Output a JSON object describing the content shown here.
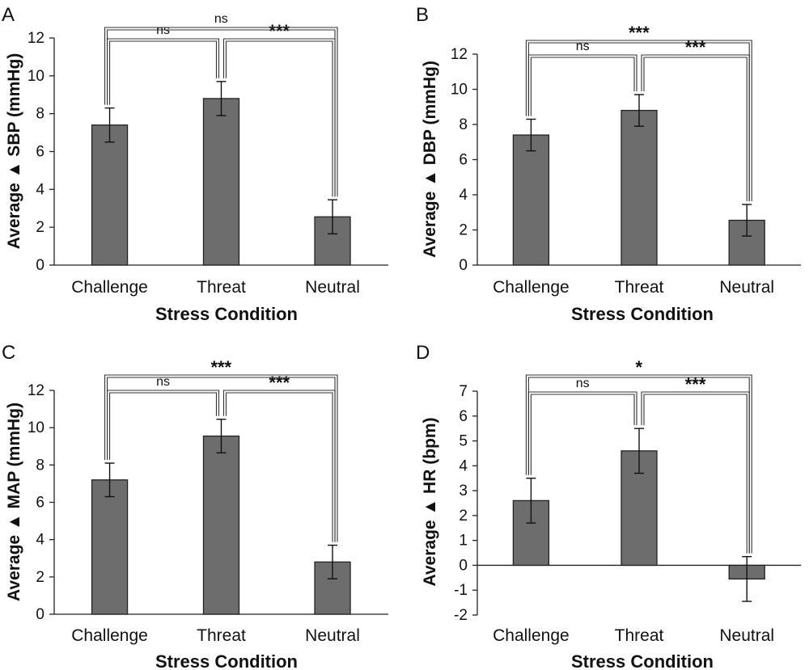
{
  "figure": {
    "panels": [
      {
        "letter": "A",
        "chart_data": {
          "type": "bar",
          "categories": [
            "Challenge",
            "Threat",
            "Neutral"
          ],
          "values": [
            7.4,
            8.8,
            2.55
          ],
          "errors": [
            0.9,
            0.9,
            0.9
          ],
          "ylim": [
            0,
            12
          ],
          "yticks": [
            "0",
            "2",
            "4",
            "6",
            "8",
            "10",
            "12"
          ],
          "ytick_values": [
            0,
            2,
            4,
            6,
            8,
            10,
            12
          ],
          "xlabel": "Stress Condition",
          "ylabel": "Average ▲ SBP (mmHg)",
          "color": "#6d6d6d",
          "significance": [
            {
              "from": 0,
              "to": 1,
              "label": "ns",
              "level": "inner"
            },
            {
              "from": 1,
              "to": 2,
              "label": "***",
              "level": "inner"
            },
            {
              "from": 0,
              "to": 2,
              "label": "ns",
              "level": "outer"
            }
          ]
        }
      },
      {
        "letter": "B",
        "chart_data": {
          "type": "bar",
          "categories": [
            "Challenge",
            "Threat",
            "Neutral"
          ],
          "values": [
            7.4,
            8.8,
            2.55
          ],
          "errors": [
            0.9,
            0.9,
            0.9
          ],
          "ylim": [
            0,
            12
          ],
          "yticks": [
            "0",
            "2",
            "4",
            "6",
            "8",
            "10",
            "12"
          ],
          "ytick_values": [
            0,
            2,
            4,
            6,
            8,
            10,
            12
          ],
          "xlabel": "Stress Condition",
          "ylabel": "Average ▲ DBP (mmHg)",
          "color": "#6d6d6d",
          "significance": [
            {
              "from": 0,
              "to": 1,
              "label": "ns",
              "level": "inner"
            },
            {
              "from": 1,
              "to": 2,
              "label": "***",
              "level": "inner"
            },
            {
              "from": 0,
              "to": 2,
              "label": "***",
              "level": "outer"
            }
          ]
        }
      },
      {
        "letter": "C",
        "chart_data": {
          "type": "bar",
          "categories": [
            "Challenge",
            "Threat",
            "Neutral"
          ],
          "values": [
            7.2,
            9.55,
            2.8
          ],
          "errors": [
            0.9,
            0.9,
            0.9
          ],
          "ylim": [
            0,
            12
          ],
          "yticks": [
            "0",
            "2",
            "4",
            "6",
            "8",
            "10",
            "12"
          ],
          "ytick_values": [
            0,
            2,
            4,
            6,
            8,
            10,
            12
          ],
          "xlabel": "Stress Condition",
          "ylabel": "Average ▲ MAP (mmHg)",
          "color": "#6d6d6d",
          "significance": [
            {
              "from": 0,
              "to": 1,
              "label": "ns",
              "level": "inner"
            },
            {
              "from": 1,
              "to": 2,
              "label": "***",
              "level": "inner"
            },
            {
              "from": 0,
              "to": 2,
              "label": "***",
              "level": "outer"
            }
          ]
        }
      },
      {
        "letter": "D",
        "chart_data": {
          "type": "bar",
          "categories": [
            "Challenge",
            "Threat",
            "Neutral"
          ],
          "values": [
            2.6,
            4.6,
            -0.55
          ],
          "errors": [
            0.9,
            0.9,
            0.9
          ],
          "ylim": [
            -2,
            7
          ],
          "yticks": [
            "-2",
            "-1",
            "0",
            "1",
            "2",
            "3",
            "4",
            "5",
            "6",
            "7"
          ],
          "ytick_values": [
            -2,
            -1,
            0,
            1,
            2,
            3,
            4,
            5,
            6,
            7
          ],
          "xlabel": "Stress Condition",
          "ylabel": "Average ▲ HR (bpm)",
          "color": "#6d6d6d",
          "significance": [
            {
              "from": 0,
              "to": 1,
              "label": "ns",
              "level": "inner"
            },
            {
              "from": 1,
              "to": 2,
              "label": "***",
              "level": "inner"
            },
            {
              "from": 0,
              "to": 2,
              "label": "*",
              "level": "outer"
            }
          ]
        }
      }
    ]
  }
}
